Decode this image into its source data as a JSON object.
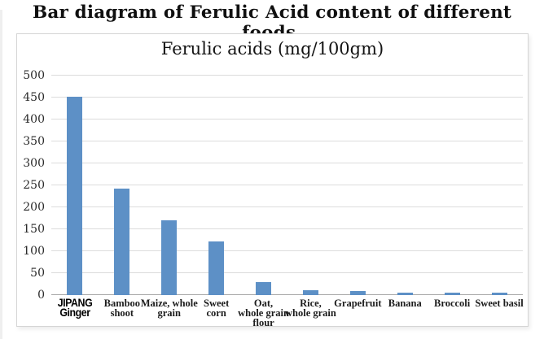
{
  "page": {
    "title": "Bar diagram of Ferulic Acid content of different foods."
  },
  "chart_data": {
    "type": "bar",
    "title": "Ferulic acids (mg/100gm)",
    "xlabel": "",
    "ylabel": "",
    "categories": [
      "JIPANG Ginger",
      "Bamboo shoot",
      "Maize, whole grain",
      "Sweet corn",
      "Oat, whole grain flour",
      "Rice, whole grain",
      "Grapefruit",
      "Banana",
      "Broccoli",
      "Sweet basil"
    ],
    "category_label_lines": [
      "JIPANG\nGinger",
      "Bamboo\nshoot",
      "Maize, whole\ngrain",
      "Sweet\ncorn",
      "Oat,\nwhole grain\nflour",
      "Rice,\nwhole grain",
      "Grapefruit",
      "Banana",
      "Broccoli",
      "Sweet basil"
    ],
    "values": [
      452,
      243,
      171,
      123,
      29,
      12,
      9,
      5,
      5,
      5
    ],
    "emphasized_category_index": 0,
    "ylim": [
      0,
      500
    ],
    "ytick_step": 50,
    "yticks": [
      0,
      50,
      100,
      150,
      200,
      250,
      300,
      350,
      400,
      450,
      500
    ],
    "grid": "horizontal",
    "legend": "none",
    "colors": {
      "bar": "#5d90c6",
      "gridline": "#dcdcdc",
      "axis": "#a6a6a6",
      "frame_border": "#d5d5d5",
      "text": "#1a1a1a"
    }
  }
}
